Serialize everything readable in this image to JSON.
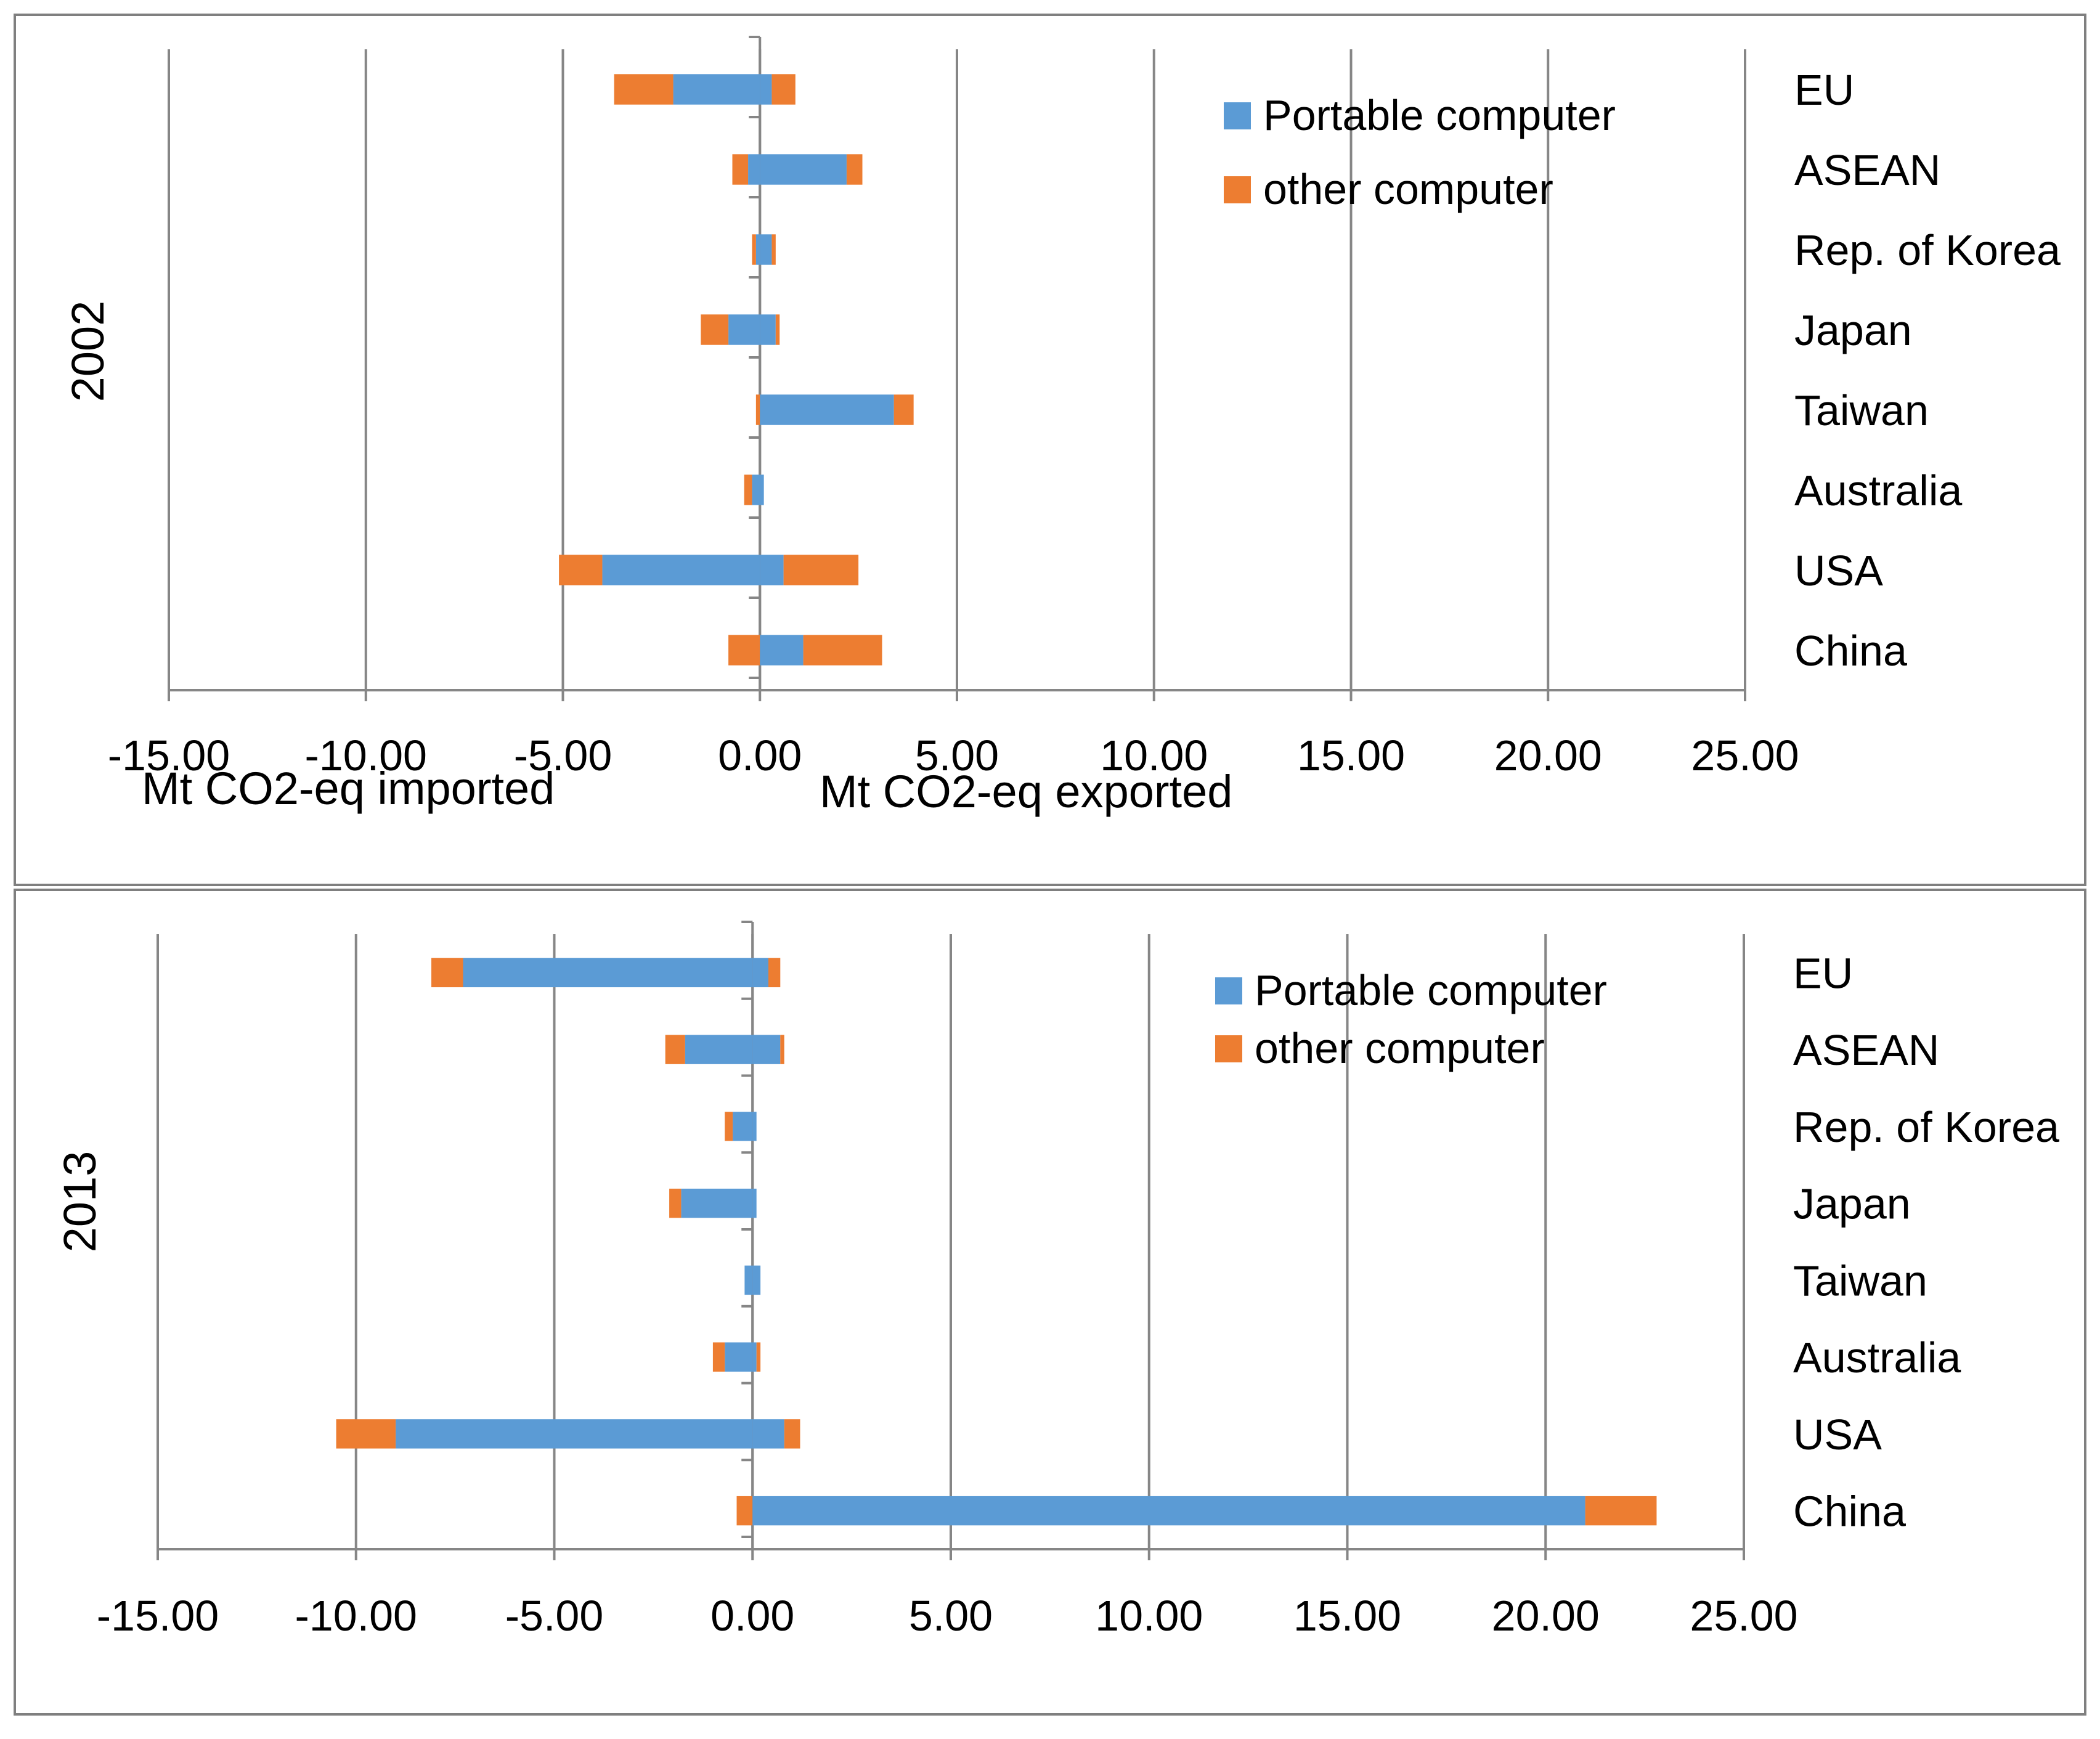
{
  "colors": {
    "portable": "#5B9BD5",
    "other": "#ED7D31",
    "grid": "#868686",
    "axis": "#868686",
    "frame": "#7F7F7F",
    "text": "#000000"
  },
  "legend": {
    "portable_label": "Portable computer",
    "other_label": "other computer"
  },
  "axis_titles": {
    "imported": "Mt CO2-eq imported",
    "exported": "Mt CO2-eq exported"
  },
  "chart_data": [
    {
      "type": "bar",
      "orientation": "horizontal",
      "stacked": true,
      "title": "2002",
      "categories": [
        "EU",
        "ASEAN",
        "Rep. of Korea",
        "Japan",
        "Taiwan",
        "Australia",
        "USA",
        "China"
      ],
      "xlim": [
        -15,
        25
      ],
      "xticks": [
        -15,
        -10,
        -5,
        0,
        5,
        10,
        15,
        20,
        25
      ],
      "tick_labels": [
        "-15.00",
        "-10.00",
        "-5.00",
        "0.00",
        "5.00",
        "10.00",
        "15.00",
        "20.00",
        "25.00"
      ],
      "grid": true,
      "legend_position": "top-right",
      "xlabel_left": "Mt CO2-eq imported",
      "xlabel_right": "Mt CO2-eq exported",
      "series": [
        {
          "name": "Portable computer",
          "side": "imported",
          "values": [
            -2.2,
            -0.3,
            -0.1,
            -0.8,
            0,
            -0.2,
            -4.0,
            0
          ]
        },
        {
          "name": "other computer",
          "side": "imported",
          "values": [
            -1.5,
            -0.4,
            -0.1,
            -0.7,
            -0.1,
            -0.2,
            -1.1,
            -0.8
          ]
        },
        {
          "name": "Portable computer",
          "side": "exported",
          "values": [
            0.3,
            2.2,
            0.3,
            0.4,
            3.4,
            0.1,
            0.6,
            1.1
          ]
        },
        {
          "name": "other computer",
          "side": "exported",
          "values": [
            0.6,
            0.4,
            0.1,
            0.1,
            0.5,
            0,
            1.9,
            2.0
          ]
        }
      ]
    },
    {
      "type": "bar",
      "orientation": "horizontal",
      "stacked": true,
      "title": "2013",
      "categories": [
        "EU",
        "ASEAN",
        "Rep. of Korea",
        "Japan",
        "Taiwan",
        "Australia",
        "USA",
        "China"
      ],
      "xlim": [
        -15,
        25
      ],
      "xticks": [
        -15,
        -10,
        -5,
        0,
        5,
        10,
        15,
        20,
        25
      ],
      "tick_labels": [
        "-15.00",
        "-10.00",
        "-5.00",
        "0.00",
        "5.00",
        "10.00",
        "15.00",
        "20.00",
        "25.00"
      ],
      "grid": true,
      "legend_position": "top-right",
      "series": [
        {
          "name": "Portable computer",
          "side": "imported",
          "values": [
            -7.3,
            -1.7,
            -0.5,
            -1.8,
            -0.2,
            -0.7,
            -9.0,
            0
          ]
        },
        {
          "name": "other computer",
          "side": "imported",
          "values": [
            -0.8,
            -0.5,
            -0.2,
            -0.3,
            0,
            -0.3,
            -1.5,
            -0.4
          ]
        },
        {
          "name": "Portable computer",
          "side": "exported",
          "values": [
            0.4,
            0.7,
            0.1,
            0.1,
            0.2,
            0.1,
            0.8,
            21.0
          ]
        },
        {
          "name": "other computer",
          "side": "exported",
          "values": [
            0.3,
            0.1,
            0,
            0,
            0,
            0.1,
            0.4,
            1.8
          ]
        }
      ]
    }
  ]
}
